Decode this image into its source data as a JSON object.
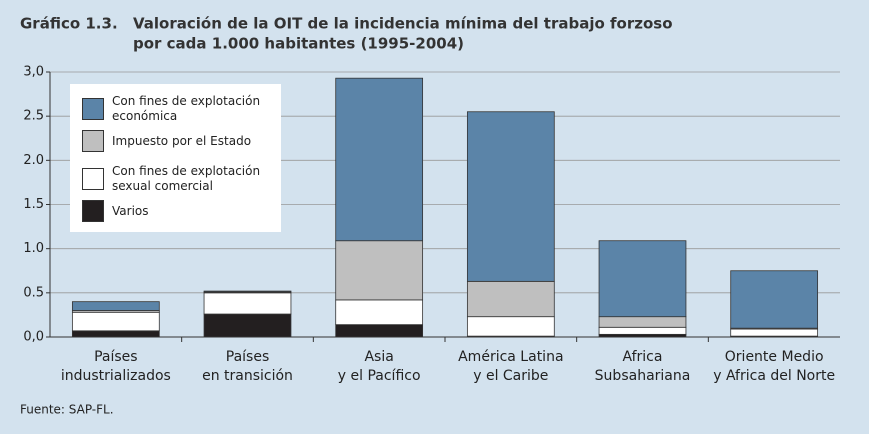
{
  "chart_data": {
    "type": "stacked_bar",
    "title_label": "Gráfico 1.3.",
    "title": [
      "Valoración de la OIT de la incidencia mínima del trabajo forzoso",
      "por cada 1.000 habitantes (1995-2004)"
    ],
    "categories": [
      [
        "Países",
        "industrializados"
      ],
      [
        "Países",
        "en transición"
      ],
      [
        "Asia",
        "y el Pacífico"
      ],
      [
        "América Latina",
        "y el Caribe"
      ],
      [
        "Africa",
        "Subsahariana"
      ],
      [
        "Oriente Medio",
        "y Africa del Norte"
      ]
    ],
    "series": [
      {
        "name": "Varios",
        "color": "#231f20",
        "values": [
          0.07,
          0.26,
          0.14,
          0.01,
          0.03,
          0.01
        ]
      },
      {
        "name": "Con fines de explotación sexual comercial",
        "color": "#ffffff",
        "values": [
          0.21,
          0.24,
          0.28,
          0.22,
          0.08,
          0.08
        ]
      },
      {
        "name": "Impuesto por el Estado",
        "color": "#bfbfbf",
        "values": [
          0.02,
          0.01,
          0.67,
          0.4,
          0.12,
          0.01
        ]
      },
      {
        "name": "Con fines de explotación económica",
        "color": "#5b84a8",
        "values": [
          0.1,
          0.01,
          1.84,
          1.92,
          0.86,
          0.65
        ]
      }
    ],
    "ylim": [
      0,
      3
    ],
    "yticks": [
      {
        "value": 0,
        "label": "0,0"
      },
      {
        "value": 0.5,
        "label": "0.5"
      },
      {
        "value": 1,
        "label": "1.0"
      },
      {
        "value": 1.5,
        "label": "1.5"
      },
      {
        "value": 2,
        "label": "2.0"
      },
      {
        "value": 2.5,
        "label": "2.5"
      },
      {
        "value": 3,
        "label": "3,0"
      }
    ],
    "grid": true,
    "source": "Fuente: SAP-FL."
  }
}
